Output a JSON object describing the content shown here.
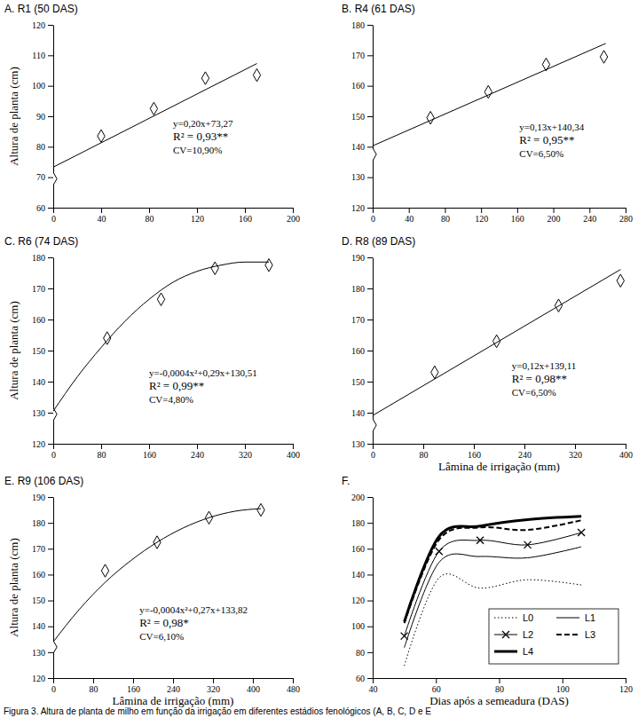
{
  "caption": "Figura 3. Altura de planta de milho em função da irrigação em diferentes estádios fenológicos (A, B, C, D e E",
  "chart_data": [
    {
      "type": "scatter",
      "title": "A. R1 (50 DAS)",
      "y_label": "Altura de planta (cm)",
      "xlim": [
        0,
        200
      ],
      "xticks": [
        0,
        40,
        80,
        120,
        160,
        200
      ],
      "ylim": [
        60,
        120
      ],
      "yticks": [
        60,
        70,
        80,
        90,
        100,
        110,
        120
      ],
      "annotations": [
        "y=0,20x+73,27",
        "R² = 0,93**",
        "CV=10,90%"
      ],
      "series": [
        {
          "type": "scatter",
          "marker": "diamond",
          "color": "#000000",
          "x": [
            0,
            40,
            84,
            127,
            170
          ],
          "values": [
            69.5,
            83.5,
            92.5,
            102.5,
            103.5
          ]
        },
        {
          "type": "line",
          "line_style": "solid",
          "color": "#000000",
          "x": [
            0,
            170
          ],
          "values": [
            73.3,
            107.3
          ]
        }
      ]
    },
    {
      "type": "scatter",
      "title": "B. R4 (61 DAS)",
      "xlim": [
        0,
        280
      ],
      "xticks": [
        0,
        40,
        80,
        120,
        160,
        200,
        240,
        280
      ],
      "ylim": [
        120,
        180
      ],
      "yticks": [
        120,
        130,
        140,
        150,
        160,
        170,
        180
      ],
      "annotations": [
        "y=0,13x+140,34",
        "R² = 0,95**",
        "CV=6,50%"
      ],
      "series": [
        {
          "type": "scatter",
          "marker": "diamond",
          "color": "#000000",
          "x": [
            0,
            64,
            128,
            192,
            256
          ],
          "values": [
            137.5,
            149.5,
            158,
            167,
            169.5
          ]
        },
        {
          "type": "line",
          "line_style": "solid",
          "color": "#000000",
          "x": [
            0,
            258
          ],
          "values": [
            140.3,
            173.9
          ]
        }
      ]
    },
    {
      "type": "scatter",
      "title": "C. R6 (74 DAS)",
      "y_label": "Altura de planta (cm)",
      "xlim": [
        0,
        400
      ],
      "xticks": [
        0,
        80,
        160,
        240,
        320,
        400
      ],
      "ylim": [
        120,
        180
      ],
      "yticks": [
        120,
        130,
        140,
        150,
        160,
        170,
        180
      ],
      "annotations": [
        "y=-0,0004x²+0,29x+130,51",
        "R² = 0,99**",
        "CV=4,80%"
      ],
      "series": [
        {
          "type": "scatter",
          "marker": "diamond",
          "color": "#000000",
          "x": [
            0,
            90,
            180,
            270,
            360
          ],
          "values": [
            129.5,
            154,
            166.5,
            176.5,
            177.5
          ]
        },
        {
          "type": "line",
          "line_style": "solid",
          "color": "#000000",
          "x": [
            0,
            40,
            80,
            120,
            160,
            200,
            240,
            280,
            320,
            360
          ],
          "values": [
            130.5,
            141.5,
            151,
            159.5,
            166.5,
            172,
            175.5,
            177.5,
            178.5,
            178.5
          ]
        }
      ]
    },
    {
      "type": "scatter",
      "title": "D. R8 (89 DAS)",
      "x_label": "Lâmina de irrigação (mm)",
      "xlim": [
        0,
        400
      ],
      "xticks": [
        0,
        80,
        160,
        240,
        320,
        400
      ],
      "ylim": [
        130,
        190
      ],
      "yticks": [
        130,
        140,
        150,
        160,
        170,
        180,
        190
      ],
      "annotations": [
        "y=0,12x+139,11",
        "R² = 0,98**",
        "CV=6,50%"
      ],
      "series": [
        {
          "type": "scatter",
          "marker": "diamond",
          "color": "#000000",
          "x": [
            0,
            98,
            196,
            294,
            392
          ],
          "values": [
            136,
            153,
            163,
            174.5,
            182.5
          ]
        },
        {
          "type": "line",
          "line_style": "solid",
          "color": "#000000",
          "x": [
            0,
            392
          ],
          "values": [
            139.1,
            186.1
          ]
        }
      ]
    },
    {
      "type": "scatter",
      "title": "E. R9 (106 DAS)",
      "y_label": "Altura de planta (cm)",
      "x_label": "Lâmina de irrigação (mm)",
      "xlim": [
        0,
        480
      ],
      "xticks": [
        0,
        80,
        160,
        240,
        320,
        400,
        480
      ],
      "ylim": [
        120,
        190
      ],
      "yticks": [
        120,
        130,
        140,
        150,
        160,
        170,
        180,
        190
      ],
      "annotations": [
        "y=-0,0004x²+0,27x+133,82",
        "R² = 0,98*",
        "CV=6,10%"
      ],
      "series": [
        {
          "type": "scatter",
          "marker": "diamond",
          "color": "#000000",
          "x": [
            0,
            104,
            208,
            312,
            416
          ],
          "values": [
            132,
            161.5,
            172.5,
            182,
            185
          ]
        },
        {
          "type": "line",
          "line_style": "solid",
          "color": "#000000",
          "x": [
            0,
            52,
            104,
            156,
            208,
            260,
            312,
            364,
            416
          ],
          "values": [
            134,
            146.5,
            157,
            165.5,
            172.5,
            178,
            182,
            184.5,
            185.5
          ]
        }
      ]
    },
    {
      "type": "line",
      "title": "F.",
      "x_label": "Dias após a semeadura (DAS)",
      "xlim": [
        40,
        120
      ],
      "xticks": [
        40,
        60,
        80,
        100,
        120
      ],
      "ylim": [
        60,
        200
      ],
      "yticks": [
        60,
        80,
        100,
        120,
        140,
        160,
        180,
        200
      ],
      "legend": "lower right",
      "x": [
        50,
        61,
        74,
        89,
        106
      ],
      "series": [
        {
          "name": "L0",
          "line_style": "dotted",
          "color": "#000000",
          "values": [
            69.5,
            137.5,
            129.5,
            136,
            132
          ]
        },
        {
          "name": "L1",
          "line_style": "solid",
          "color": "#000000",
          "values": [
            83.5,
            149.5,
            154,
            153,
            161.5
          ]
        },
        {
          "name": "L2",
          "line_style": "solid",
          "marker": "x",
          "color": "#000000",
          "values": [
            92.5,
            158,
            166.5,
            163,
            172.5
          ]
        },
        {
          "name": "L3",
          "line_style": "dashed",
          "color": "#000000",
          "values": [
            102.5,
            167,
            176.5,
            174.5,
            182
          ]
        },
        {
          "name": "L4",
          "line_style": "thick",
          "color": "#000000",
          "values": [
            103.5,
            169.5,
            177.5,
            182.5,
            185
          ]
        }
      ]
    }
  ]
}
